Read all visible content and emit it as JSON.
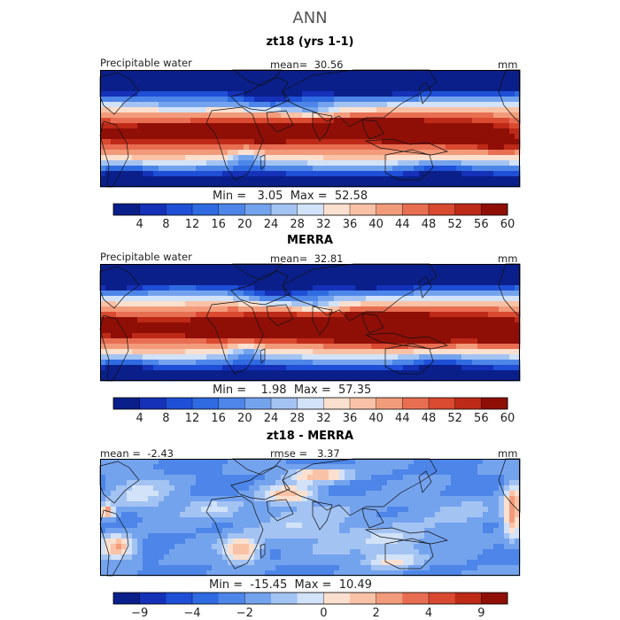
{
  "page": {
    "title": "ANN"
  },
  "chart_data": [
    {
      "type": "heatmap",
      "title": "zt18 (yrs 1-1)",
      "variable_label": "Precipitable water",
      "units": "mm",
      "mean_label": "mean=",
      "mean": "30.56",
      "min_label": "Min =",
      "min": "3.05",
      "max_label": "Max =",
      "max": "52.58",
      "colorbar": {
        "levels": [
          "4",
          "8",
          "12",
          "16",
          "20",
          "24",
          "28",
          "32",
          "36",
          "40",
          "44",
          "48",
          "52",
          "56",
          "60"
        ],
        "colors": [
          "#0a1f8a",
          "#1431b8",
          "#1e4fd6",
          "#2f6ae0",
          "#4d86e8",
          "#74a3ee",
          "#a3c3f3",
          "#d2e2f8",
          "#fbe0cf",
          "#f9c2a6",
          "#f29b7b",
          "#e86e52",
          "#d94a30",
          "#bd2a17",
          "#8f0f07"
        ]
      }
    },
    {
      "type": "heatmap",
      "title": "MERRA",
      "variable_label": "Precipitable water",
      "units": "mm",
      "mean_label": "mean=",
      "mean": "32.81",
      "min_label": "Min =",
      "min": "1.98",
      "max_label": "Max =",
      "max": "57.35",
      "colorbar": {
        "levels": [
          "4",
          "8",
          "12",
          "16",
          "20",
          "24",
          "28",
          "32",
          "36",
          "40",
          "44",
          "48",
          "52",
          "56",
          "60"
        ],
        "colors": [
          "#0a1f8a",
          "#1431b8",
          "#1e4fd6",
          "#2f6ae0",
          "#4d86e8",
          "#74a3ee",
          "#a3c3f3",
          "#d2e2f8",
          "#fbe0cf",
          "#f9c2a6",
          "#f29b7b",
          "#e86e52",
          "#d94a30",
          "#bd2a17",
          "#8f0f07"
        ]
      }
    },
    {
      "type": "heatmap",
      "title": "zt18 - MERRA",
      "units": "mm",
      "mean_label": "mean =",
      "mean": "-2.43",
      "rmse_label": "rmse =",
      "rmse": "3.37",
      "min_label": "Min =",
      "min": "-15.45",
      "max_label": "Max =",
      "max": "10.49",
      "colorbar": {
        "levels": [
          "−9",
          "−4",
          "−2",
          "0",
          "2",
          "4",
          "9"
        ],
        "colors": [
          "#0a1f8a",
          "#1431b8",
          "#1e4fd6",
          "#2f6ae0",
          "#4d86e8",
          "#74a3ee",
          "#a3c3f3",
          "#d2e2f8",
          "#fbe0cf",
          "#f9c2a6",
          "#f29b7b",
          "#e86e52",
          "#d94a30",
          "#bd2a17",
          "#8f0f07"
        ]
      }
    }
  ]
}
